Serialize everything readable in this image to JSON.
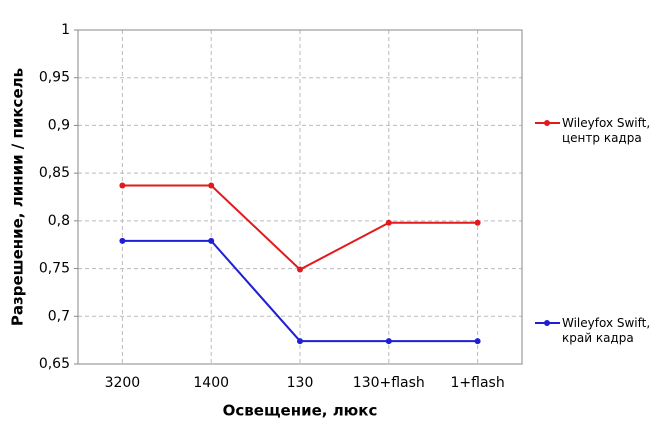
{
  "chart_data": {
    "type": "line",
    "x_label": "Освещение,  люкс",
    "y_label": "Разрешение,  линии / пиксель",
    "categories": [
      "3200",
      "1400",
      "130",
      "130+flash",
      "1+flash"
    ],
    "series": [
      {
        "name": "Wileyfox Swift, центр кадра",
        "color": "#e31a1c",
        "values": [
          0.837,
          0.837,
          0.749,
          0.798,
          0.798
        ]
      },
      {
        "name": "Wileyfox Swift, край кадра",
        "color": "#1f1fd6",
        "values": [
          0.779,
          0.779,
          0.674,
          0.674,
          0.674
        ]
      }
    ],
    "ylim": [
      0.65,
      1
    ],
    "yticks": [
      {
        "value": 0.65,
        "label": "0,65"
      },
      {
        "value": 0.7,
        "label": "0,7"
      },
      {
        "value": 0.75,
        "label": "0,75"
      },
      {
        "value": 0.8,
        "label": "0,8"
      },
      {
        "value": 0.85,
        "label": "0,85"
      },
      {
        "value": 0.9,
        "label": "0,9"
      },
      {
        "value": 0.95,
        "label": "0,95"
      },
      1
    ],
    "grid": true
  }
}
